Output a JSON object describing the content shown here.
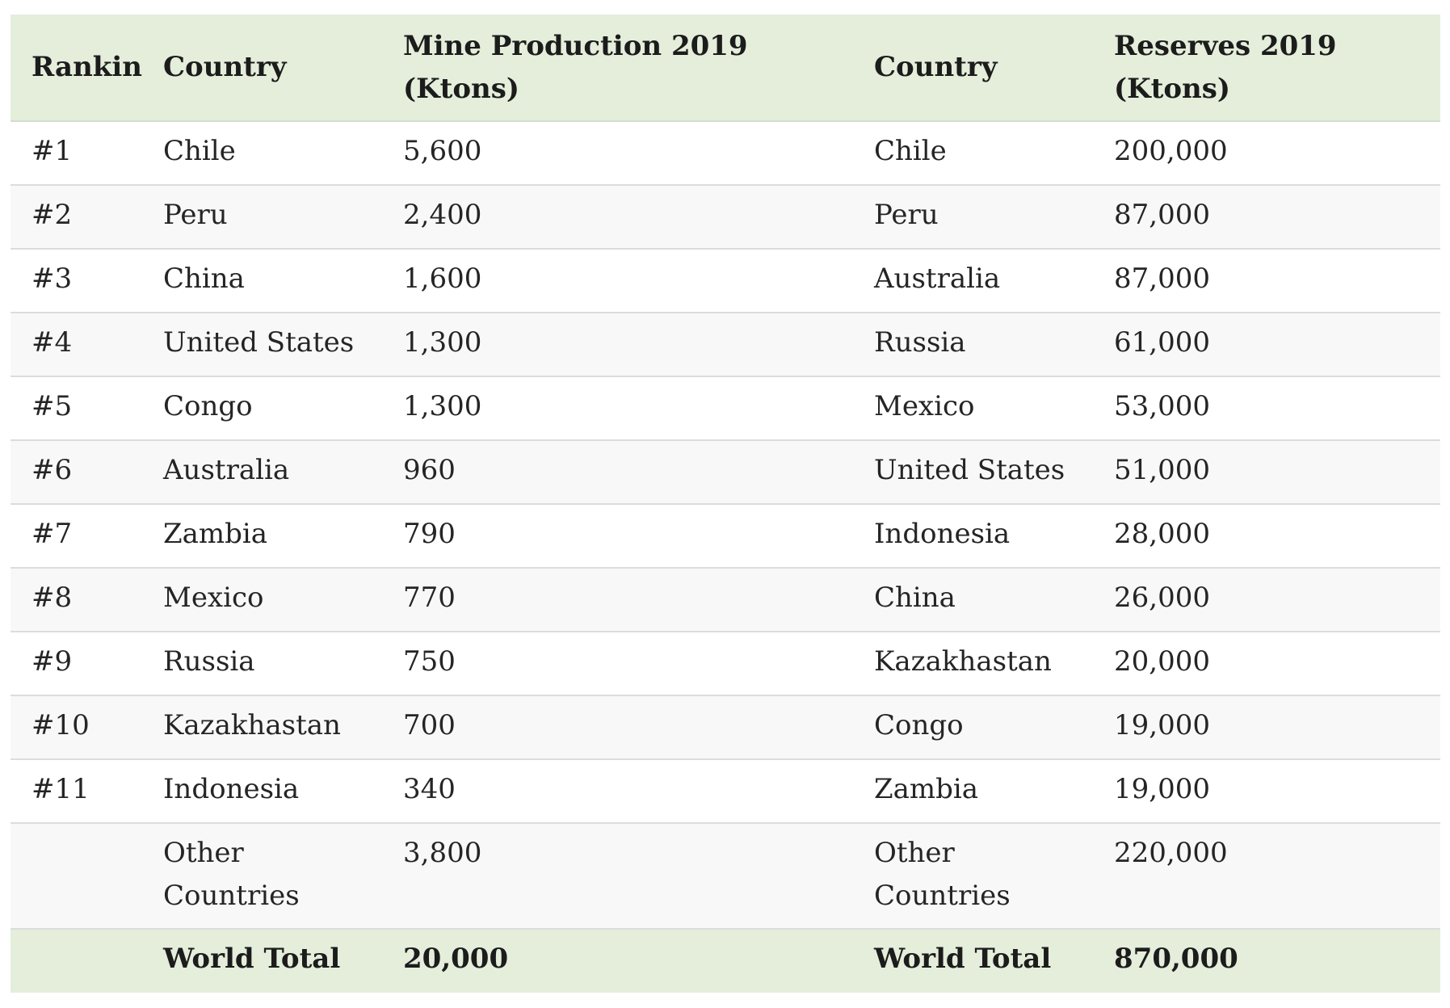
{
  "header": {
    "ranking": "Ranking",
    "country_production": "Country",
    "mine_production": "Mine Production 2019 (Ktons)",
    "country_reserves": "Country",
    "reserves": "Reserves 2019 (Ktons)"
  },
  "rows": [
    {
      "rank": "#1",
      "prod_country": "Chile",
      "production": "5,600",
      "res_country": "Chile",
      "reserves": "200,000"
    },
    {
      "rank": "#2",
      "prod_country": "Peru",
      "production": "2,400",
      "res_country": "Peru",
      "reserves": "87,000"
    },
    {
      "rank": "#3",
      "prod_country": "China",
      "production": "1,600",
      "res_country": "Australia",
      "reserves": "87,000"
    },
    {
      "rank": "#4",
      "prod_country": "United States",
      "production": "1,300",
      "res_country": "Russia",
      "reserves": "61,000"
    },
    {
      "rank": "#5",
      "prod_country": "Congo",
      "production": "1,300",
      "res_country": "Mexico",
      "reserves": "53,000"
    },
    {
      "rank": "#6",
      "prod_country": "Australia",
      "production": "960",
      "res_country": "United States",
      "reserves": "51,000"
    },
    {
      "rank": "#7",
      "prod_country": "Zambia",
      "production": "790",
      "res_country": "Indonesia",
      "reserves": "28,000"
    },
    {
      "rank": "#8",
      "prod_country": "Mexico",
      "production": "770",
      "res_country": "China",
      "reserves": "26,000"
    },
    {
      "rank": "#9",
      "prod_country": "Russia",
      "production": "750",
      "res_country": "Kazakhastan",
      "reserves": "20,000"
    },
    {
      "rank": "#10",
      "prod_country": "Kazakhastan",
      "production": "700",
      "res_country": "Congo",
      "reserves": "19,000"
    },
    {
      "rank": "#11",
      "prod_country": "Indonesia",
      "production": "340",
      "res_country": "Zambia",
      "reserves": "19,000"
    },
    {
      "rank": "",
      "prod_country": "Other Countries",
      "production": "3,800",
      "res_country": "Other Countries",
      "reserves": "220,000"
    }
  ],
  "footer": {
    "rank": "",
    "prod_label": "World Total",
    "production_total": "20,000",
    "res_label": "World Total",
    "reserves_total": "870,000"
  },
  "colors": {
    "header_background": "#e4eedb",
    "row_alternate_background": "#f8f8f8",
    "row_background": "#ffffff",
    "divider": "#dcdcdc"
  }
}
